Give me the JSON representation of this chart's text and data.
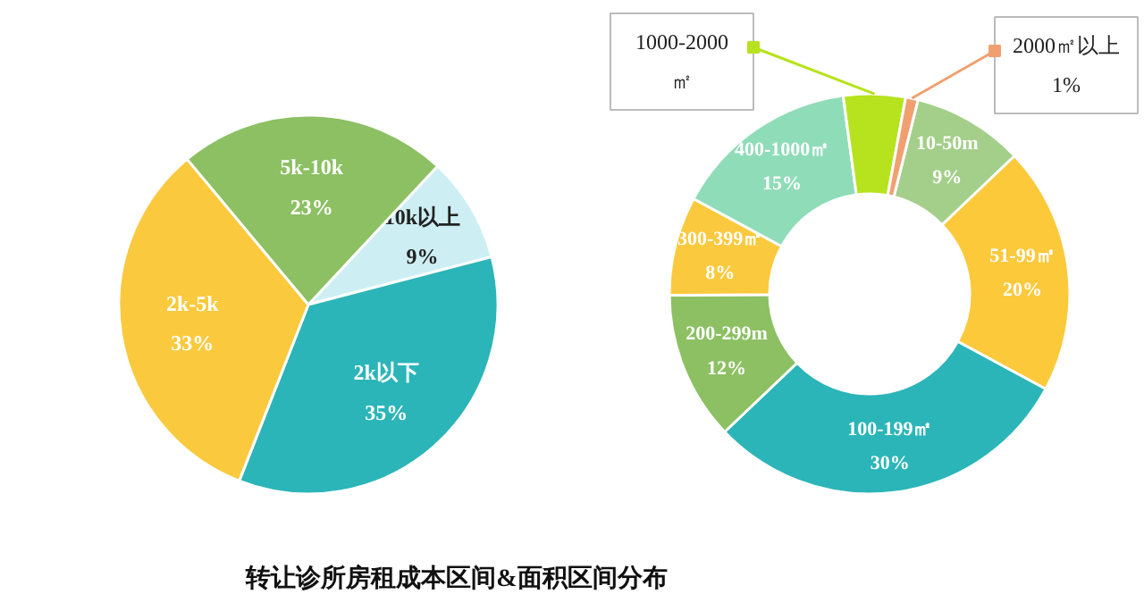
{
  "chart_data": [
    {
      "type": "pie",
      "categories": [
        "10k以上",
        "2k以下",
        "2k-5k",
        "5k-10k"
      ],
      "values": [
        9,
        35,
        33,
        23
      ],
      "value_labels": [
        "9%",
        "35%",
        "33%",
        "23%"
      ],
      "colors": [
        "#cdeff3",
        "#2bb5b8",
        "#fbc93d",
        "#8cc063"
      ],
      "annotations": [
        "转让诊所房租成本区间&面积区间分布"
      ]
    },
    {
      "type": "donut",
      "categories": [
        "10-50m",
        "51-99㎡",
        "100-199㎡",
        "200-299m",
        "300-399㎡",
        "400-1000㎡",
        "1000-2000\n㎡",
        "2000㎡以上"
      ],
      "values": [
        9,
        20,
        30,
        12,
        8,
        15,
        5,
        1
      ],
      "value_labels": [
        "9%",
        "20%",
        "30%",
        "12%",
        "8%",
        "15%",
        null,
        "1%"
      ],
      "colors": [
        "#a4cf8a",
        "#fcc93b",
        "#2bb5b8",
        "#8cc063",
        "#fbc93d",
        "#8fdcb8",
        "#b6e31d",
        "#f0a070"
      ]
    }
  ]
}
